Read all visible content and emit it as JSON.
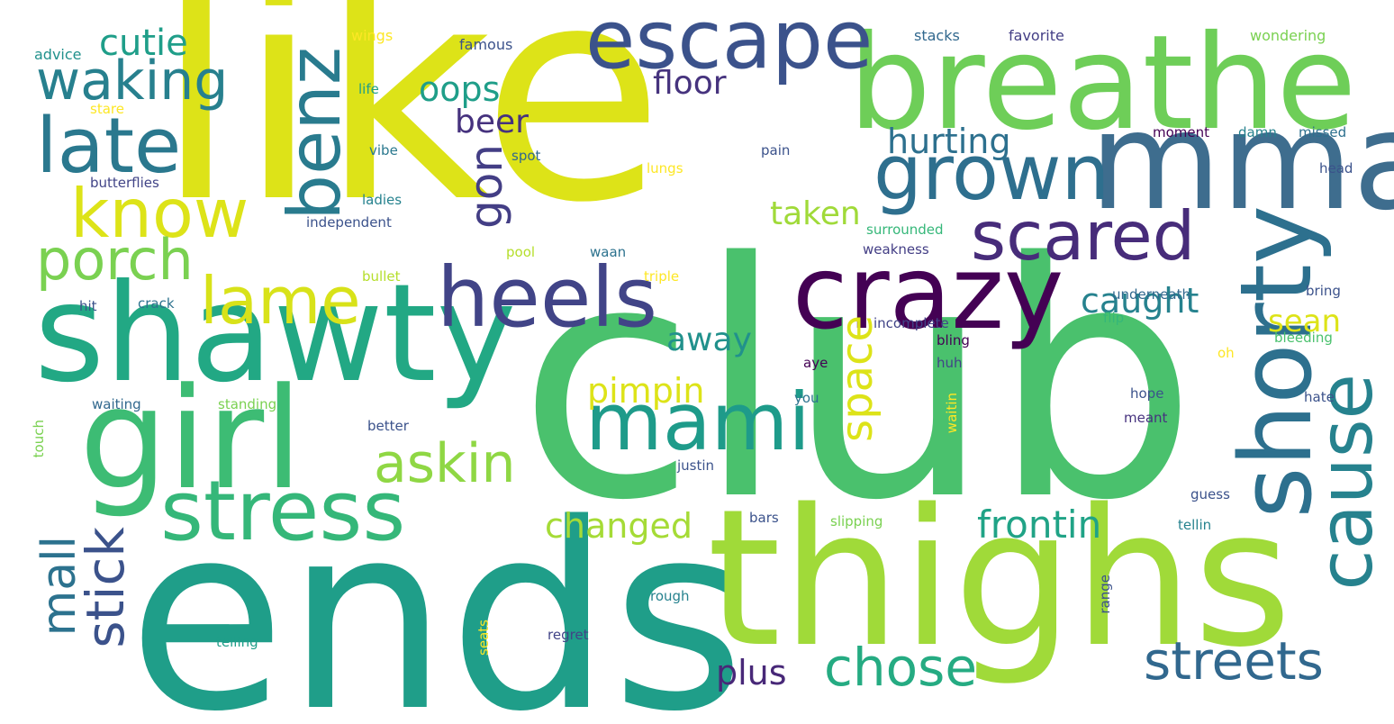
{
  "words": {
    "like": "like",
    "club": "club",
    "ends": "ends",
    "thighs": "thighs",
    "breathe": "breathe",
    "shawty": "shawty",
    "mma": "mma",
    "girl": "girl",
    "crazy": "crazy",
    "escape": "escape",
    "grown": "grown",
    "stress": "stress",
    "shorty": "shorty",
    "cause": "cause",
    "heels": "heels",
    "late": "late",
    "scared": "scared",
    "mami": "mami",
    "know": "know",
    "benz": "benz",
    "streets": "streets",
    "chose": "chose",
    "waking": "waking",
    "lame": "lame",
    "porch": "porch",
    "askin": "askin",
    "stick": "stick",
    "space": "space",
    "mall": "mall",
    "frontin": "frontin",
    "changed": "changed",
    "gon": "gon",
    "pimpin": "pimpin",
    "cutie": "cutie",
    "oops": "oops",
    "hurting": "hurting",
    "caught": "caught",
    "taken": "taken",
    "floor": "floor",
    "beer": "beer",
    "away": "away",
    "plus": "plus",
    "sean": "sean",
    "wings": "wings",
    "famous": "famous",
    "stacks": "stacks",
    "favorite": "favorite",
    "wondering": "wondering",
    "advice": "advice",
    "life": "life",
    "stare": "stare",
    "vibe": "vibe",
    "spot": "spot",
    "pain": "pain",
    "lungs": "lungs",
    "moment": "moment",
    "damn": "damn",
    "missed": "missed",
    "head": "head",
    "butterflies": "butterflies",
    "ladies": "ladies",
    "independent": "independent",
    "surrounded": "surrounded",
    "weakness": "weakness",
    "pool": "pool",
    "waan": "waan",
    "bullet": "bullet",
    "triple": "triple",
    "underneath": "underneath",
    "bring": "bring",
    "hit": "hit",
    "crack": "crack",
    "incomplete": "incomplete",
    "flip": "flip",
    "bling": "bling",
    "bleeding": "bleeding",
    "oh": "oh",
    "aye": "aye",
    "huh": "huh",
    "you": "you",
    "waiting": "waiting",
    "standing": "standing",
    "hate": "hate",
    "hope": "hope",
    "meant": "meant",
    "better": "better",
    "waitin": "waitin",
    "touch": "touch",
    "justin": "justin",
    "guess": "guess",
    "bars": "bars",
    "slipping": "slipping",
    "tellin": "tellin",
    "range": "range",
    "rough": "rough",
    "telling": "telling",
    "seats": "seats",
    "regret": "regret"
  },
  "palette": {
    "yellow": "#dde318",
    "lightyellow": "#fde725",
    "yellowgreen": "#b5de2b",
    "lime": "#84d44b",
    "lightgreen": "#6ece58",
    "green": "#4ac16d",
    "midgreen": "#35b779",
    "teal": "#1f9e89",
    "tealblue": "#26828e",
    "blue": "#31688e",
    "slate": "#3e4989",
    "indigo": "#482878",
    "purple": "#440154"
  }
}
